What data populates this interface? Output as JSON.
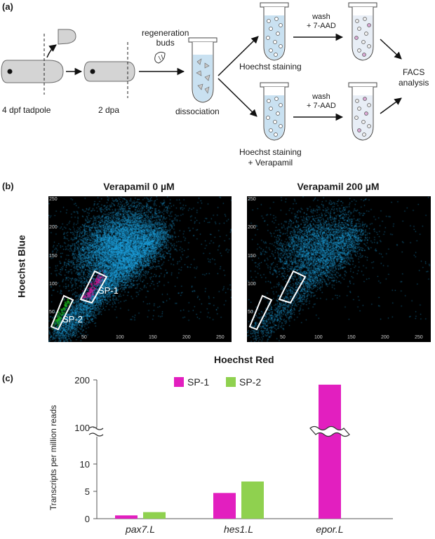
{
  "panel_a": {
    "label": "(a)",
    "tadpole_label": "4 dpf tadpole",
    "dpa_label": "2 dpa",
    "regeneration_buds": "regeneration\nbuds",
    "dissociation": "dissociation",
    "hoechst_staining": "Hoechst staining",
    "hoechst_verapamil": "Hoechst staining\n+ Verapamil",
    "wash_top": "wash\n+ 7-AAD",
    "wash_bottom": "wash\n+ 7-AAD",
    "facs": "FACS\nanalysis"
  },
  "panel_b": {
    "label": "(b)",
    "plots": [
      {
        "title": "Verapamil 0 µM",
        "gates": [
          "SP-1",
          "SP-2"
        ]
      },
      {
        "title": "Verapamil 200 µM",
        "gates": [
          "",
          ""
        ]
      }
    ],
    "ylabel": "Hoechst Blue",
    "xlabel": "Hoechst Red",
    "x_ticks": [
      "50",
      "100",
      "150",
      "200",
      "250"
    ],
    "y_ticks": [
      "50",
      "100",
      "150",
      "200",
      "250"
    ],
    "colors": {
      "cells": "#1fa8e8",
      "sp1": "#e0189f",
      "sp2": "#1ec21e",
      "background": "#000000"
    }
  },
  "panel_c": {
    "label": "(c)",
    "chart_data": {
      "type": "bar",
      "categories": [
        "pax7.L",
        "hes1.L",
        "epor.L"
      ],
      "series": [
        {
          "name": "SP-1",
          "values": [
            0.6,
            4.7,
            190
          ],
          "color": "#e21fbf"
        },
        {
          "name": "SP-2",
          "values": [
            1.2,
            6.8,
            null
          ],
          "color": "#8fd14f"
        }
      ],
      "ylabel": "Transcripts per million reads",
      "lower_ticks": [
        "0",
        "5",
        "10"
      ],
      "upper_ticks": [
        "100",
        "200"
      ],
      "axis_break": true,
      "legend_position": "top-center"
    }
  }
}
